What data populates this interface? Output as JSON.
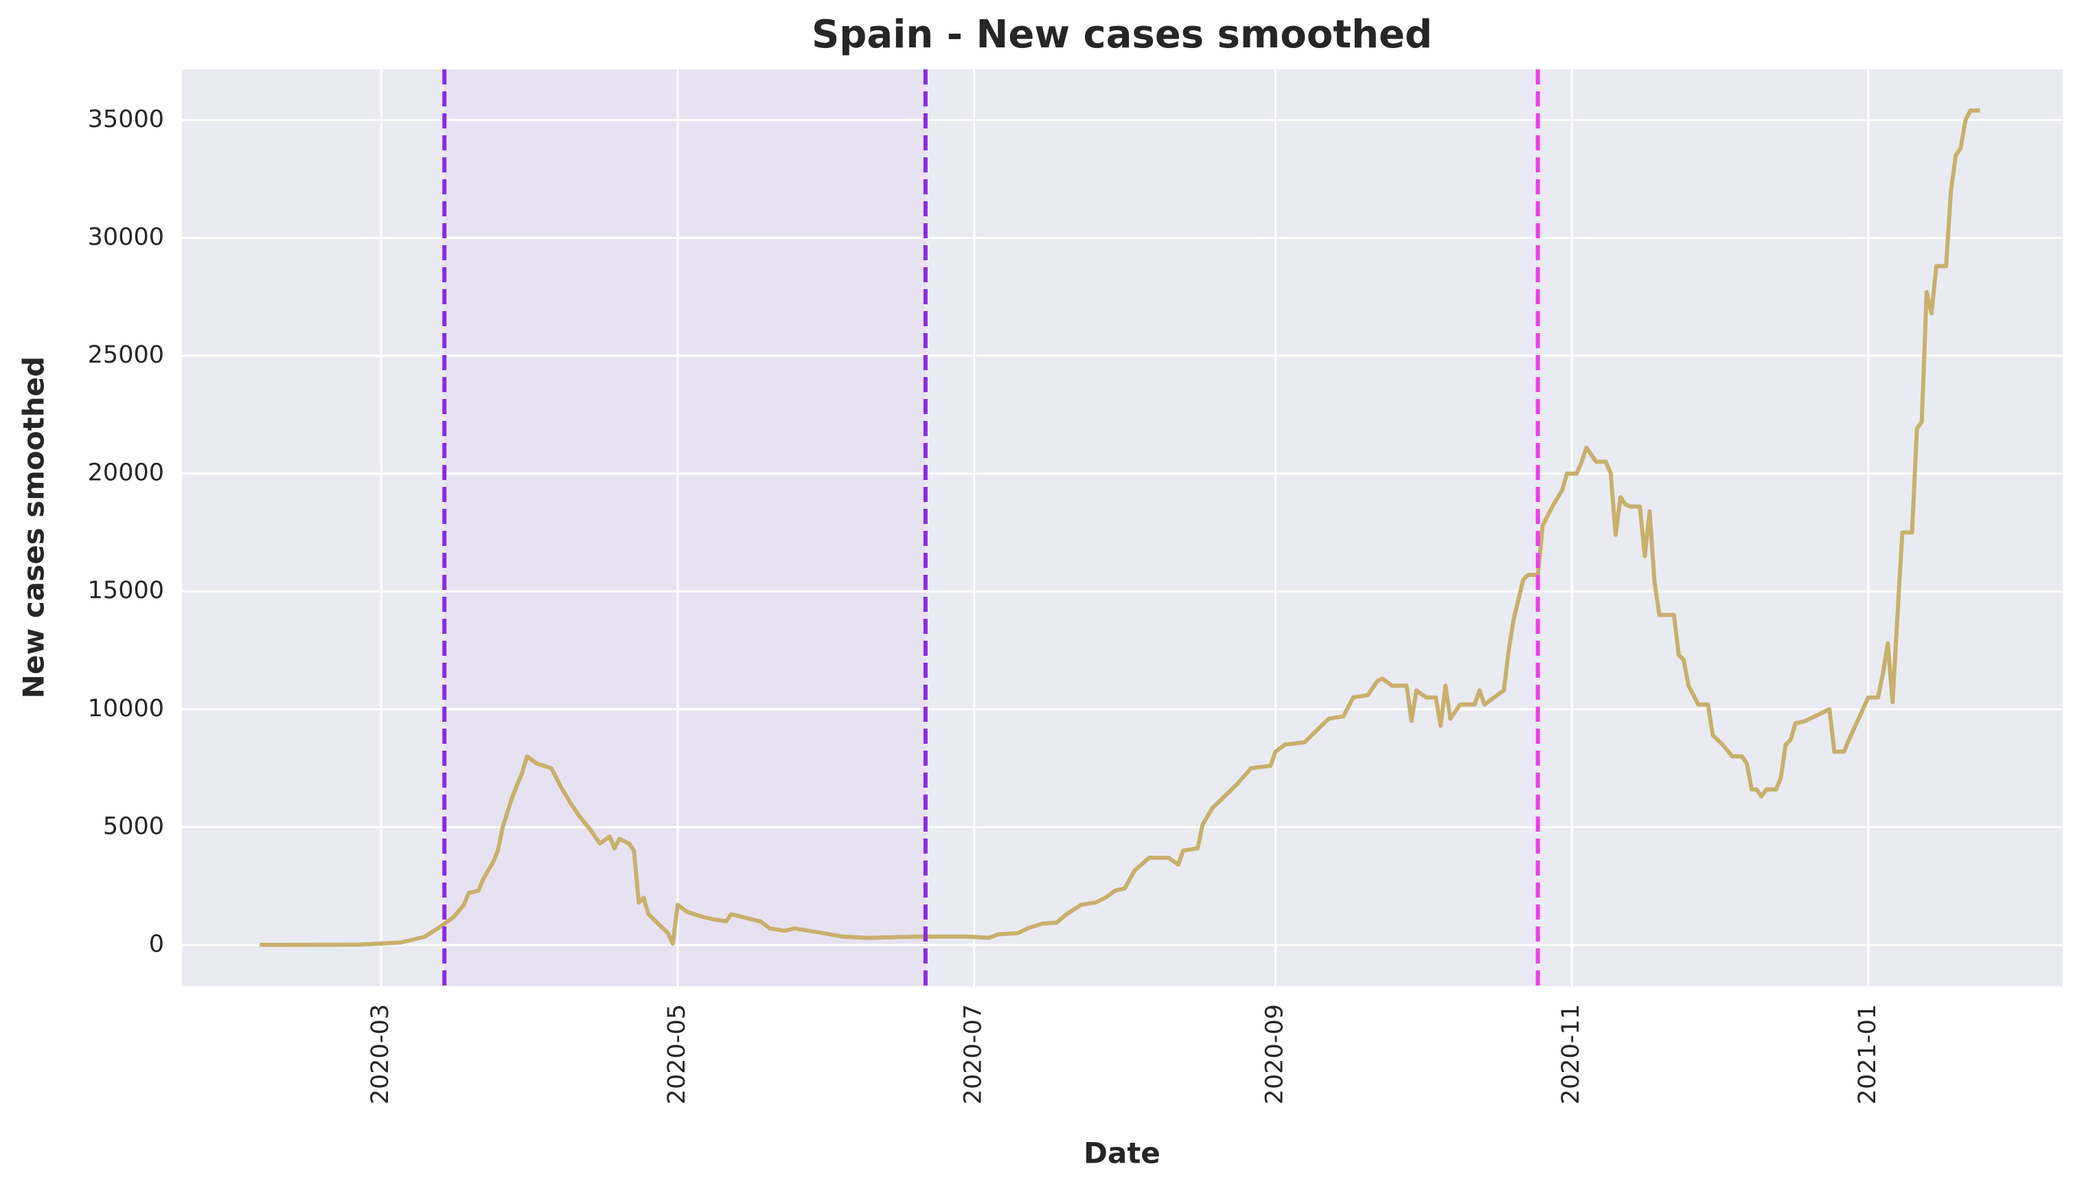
{
  "chart_data": {
    "type": "line",
    "title": "Spain - New cases smoothed",
    "xlabel": "Date",
    "ylabel": "New cases smoothed",
    "color": "#c8b06c",
    "grid": true,
    "xlim": [
      "2020-01-20",
      "2021-02-10"
    ],
    "ylim": [
      -1750,
      37150
    ],
    "yticks": [
      0,
      5000,
      10000,
      15000,
      20000,
      25000,
      30000,
      35000
    ],
    "xticks": [
      {
        "value": "2020-03-01",
        "label": "2020-03"
      },
      {
        "value": "2020-05-01",
        "label": "2020-05"
      },
      {
        "value": "2020-07-01",
        "label": "2020-07"
      },
      {
        "value": "2020-09-01",
        "label": "2020-09"
      },
      {
        "value": "2020-11-01",
        "label": "2020-11"
      },
      {
        "value": "2021-01-01",
        "label": "2021-01"
      }
    ],
    "spans": [
      {
        "x": [
          "2020-03-14",
          "2020-06-21"
        ],
        "color": "#e6e1f1"
      }
    ],
    "vlines": [
      {
        "x": "2020-03-14",
        "color": "#8a2be2"
      },
      {
        "x": "2020-06-21",
        "color": "#8a2be2"
      },
      {
        "x": "2020-10-25",
        "color": "#ee3cee"
      }
    ],
    "x": [
      "2020-02-05",
      "2020-02-25",
      "2020-03-05",
      "2020-03-10",
      "2020-03-13",
      "2020-03-16",
      "2020-03-18",
      "2020-03-19",
      "2020-03-21",
      "2020-03-22",
      "2020-03-24",
      "2020-03-25",
      "2020-03-26",
      "2020-03-28",
      "2020-03-29",
      "2020-03-30",
      "2020-03-31",
      "2020-04-02",
      "2020-04-05",
      "2020-04-07",
      "2020-04-09",
      "2020-04-11",
      "2020-04-13",
      "2020-04-15",
      "2020-04-17",
      "2020-04-18",
      "2020-04-19",
      "2020-04-21",
      "2020-04-22",
      "2020-04-23",
      "2020-04-24",
      "2020-04-25",
      "2020-04-27",
      "2020-04-29",
      "2020-04-30",
      "2020-05-01",
      "2020-05-03",
      "2020-05-06",
      "2020-05-08",
      "2020-05-11",
      "2020-05-12",
      "2020-05-15",
      "2020-05-18",
      "2020-05-20",
      "2020-05-23",
      "2020-05-25",
      "2020-05-28",
      "2020-05-31",
      "2020-06-04",
      "2020-06-09",
      "2020-06-19",
      "2020-06-30",
      "2020-07-04",
      "2020-07-06",
      "2020-07-10",
      "2020-07-12",
      "2020-07-15",
      "2020-07-18",
      "2020-07-20",
      "2020-07-23",
      "2020-07-26",
      "2020-07-28",
      "2020-07-30",
      "2020-08-01",
      "2020-08-03",
      "2020-08-06",
      "2020-08-10",
      "2020-08-12",
      "2020-08-13",
      "2020-08-16",
      "2020-08-17",
      "2020-08-19",
      "2020-08-21",
      "2020-08-24",
      "2020-08-27",
      "2020-08-31",
      "2020-09-01",
      "2020-09-03",
      "2020-09-07",
      "2020-09-09",
      "2020-09-12",
      "2020-09-15",
      "2020-09-17",
      "2020-09-20",
      "2020-09-22",
      "2020-09-23",
      "2020-09-25",
      "2020-09-28",
      "2020-09-29",
      "2020-09-30",
      "2020-10-02",
      "2020-10-04",
      "2020-10-05",
      "2020-10-06",
      "2020-10-07",
      "2020-10-09",
      "2020-10-12",
      "2020-10-13",
      "2020-10-14",
      "2020-10-16",
      "2020-10-18",
      "2020-10-19",
      "2020-10-20",
      "2020-10-22",
      "2020-10-23",
      "2020-10-25",
      "2020-10-26",
      "2020-10-28",
      "2020-10-30",
      "2020-10-31",
      "2020-11-02",
      "2020-11-03",
      "2020-11-04",
      "2020-11-06",
      "2020-11-08",
      "2020-11-09",
      "2020-11-10",
      "2020-11-11",
      "2020-11-12",
      "2020-11-13",
      "2020-11-15",
      "2020-11-16",
      "2020-11-17",
      "2020-11-18",
      "2020-11-19",
      "2020-11-22",
      "2020-11-23",
      "2020-11-24",
      "2020-11-25",
      "2020-11-27",
      "2020-11-29",
      "2020-11-30",
      "2020-12-02",
      "2020-12-04",
      "2020-12-06",
      "2020-12-07",
      "2020-12-08",
      "2020-12-09",
      "2020-12-10",
      "2020-12-11",
      "2020-12-13",
      "2020-12-14",
      "2020-12-15",
      "2020-12-16",
      "2020-12-17",
      "2020-12-19",
      "2020-12-21",
      "2020-12-24",
      "2020-12-25",
      "2020-12-27",
      "2020-12-28",
      "2020-12-30",
      "2021-01-01",
      "2021-01-03",
      "2021-01-04",
      "2021-01-05",
      "2021-01-06",
      "2021-01-07",
      "2021-01-08",
      "2021-01-10",
      "2021-01-11",
      "2021-01-12",
      "2021-01-13",
      "2021-01-14",
      "2021-01-15",
      "2021-01-17",
      "2021-01-18",
      "2021-01-19",
      "2021-01-20",
      "2021-01-21",
      "2021-01-22",
      "2021-01-24"
    ],
    "values": [
      0,
      10,
      100,
      350,
      750,
      1200,
      1700,
      2200,
      2300,
      2800,
      3500,
      4000,
      5000,
      6300,
      6800,
      7300,
      8000,
      7700,
      7500,
      6700,
      6000,
      5400,
      4900,
      4300,
      4600,
      4100,
      4500,
      4300,
      4000,
      1800,
      2000,
      1300,
      900,
      500,
      50,
      1700,
      1400,
      1200,
      1100,
      1000,
      1300,
      1150,
      1000,
      700,
      600,
      700,
      600,
      500,
      350,
      300,
      350,
      350,
      300,
      450,
      500,
      700,
      900,
      950,
      1300,
      1700,
      1800,
      2000,
      2300,
      2400,
      3150,
      3700,
      3700,
      3400,
      4000,
      4100,
      5100,
      5800,
      6200,
      6800,
      7500,
      7600,
      8200,
      8500,
      8600,
      9000,
      9600,
      9700,
      10500,
      10600,
      11200,
      11300,
      11000,
      11000,
      9500,
      10800,
      10500,
      10500,
      9300,
      11000,
      9600,
      10200,
      10200,
      10800,
      10200,
      10500,
      10800,
      12500,
      13800,
      15500,
      15700,
      15700,
      17800,
      18600,
      19300,
      20000,
      20000,
      20500,
      21100,
      20500,
      20500,
      20000,
      17400,
      19000,
      18700,
      18600,
      18600,
      16500,
      18400,
      15400,
      14000,
      14000,
      12300,
      12100,
      11000,
      10200,
      10200,
      8900,
      8500,
      8000,
      8000,
      7700,
      6600,
      6600,
      6300,
      6600,
      6600,
      7100,
      8500,
      8700,
      9400,
      9500,
      9700,
      10000,
      8200,
      8200,
      8700,
      9600,
      10500,
      10500,
      11500,
      12800,
      10300,
      14000,
      17500,
      17500,
      21900,
      22200,
      27700,
      26800,
      28800,
      28800,
      32000,
      33500,
      33800,
      35000,
      35400,
      35400
    ]
  }
}
